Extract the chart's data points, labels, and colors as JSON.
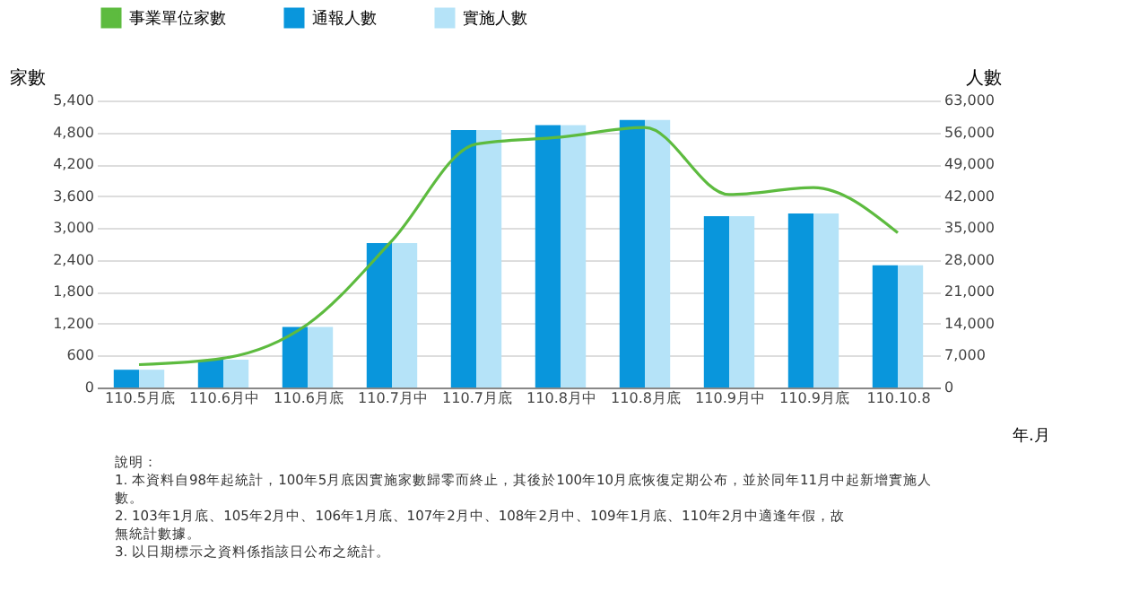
{
  "chart_data": {
    "type": "bar",
    "categories": [
      "110.5月底",
      "110.6月中",
      "110.6月底",
      "110.7月中",
      "110.7月底",
      "110.8月中",
      "110.8月底",
      "110.9月中",
      "110.9月底",
      "110.10.8"
    ],
    "series": [
      {
        "name": "事業單位家數",
        "type": "line",
        "color": "#5dbb3f",
        "values": [
          430,
          550,
          1190,
          2760,
          4580,
          4710,
          4890,
          3630,
          3760,
          2910
        ]
      },
      {
        "name": "通報人數",
        "axis": "y2",
        "color": "#0996dc",
        "values": [
          3900,
          6100,
          13300,
          31700,
          56500,
          57600,
          58700,
          37600,
          38200,
          26800
        ]
      },
      {
        "name": "實施人數",
        "axis": "y2",
        "color": "#b5e3f8",
        "values": [
          3900,
          6100,
          13300,
          31700,
          56500,
          57600,
          58700,
          37600,
          38200,
          26800
        ]
      }
    ],
    "ylabel": "家數",
    "y2label": "人數",
    "xlabel": "年.月",
    "ylim": [
      0,
      5400
    ],
    "yticks": [
      0,
      600,
      {
        "value": 1200,
        "label": "1,200"
      },
      {
        "value": 1800,
        "label": "1,800"
      },
      {
        "value": 2400,
        "label": "2,400"
      },
      {
        "value": 3000,
        "label": "3,000"
      },
      {
        "value": 3600,
        "label": "3,600"
      },
      {
        "value": 4200,
        "label": "4,200"
      },
      {
        "value": 4800,
        "label": "4,800"
      },
      {
        "value": 5400,
        "label": "5,400"
      }
    ],
    "y2lim": [
      0,
      63000
    ],
    "y2ticks": [
      0,
      {
        "value": 7000,
        "label": "7,000"
      },
      {
        "value": 14000,
        "label": "14,000"
      },
      {
        "value": 21000,
        "label": "21,000"
      },
      {
        "value": 28000,
        "label": "28,000"
      },
      {
        "value": 35000,
        "label": "35,000"
      },
      {
        "value": 42000,
        "label": "42,000"
      },
      {
        "value": 49000,
        "label": "49,000"
      },
      {
        "value": 56000,
        "label": "56,000"
      },
      {
        "value": 63000,
        "label": "63,000"
      }
    ],
    "grid": "y",
    "legend": "top",
    "annotations": [
      "說明：",
      "1. 本資料自98年起統計，100年5月底因實施家數歸零而終止，其後於100年10月底恢復定期公布，並於同年11月中起新增實施人數。",
      "2. 103年1月底、105年2月中、106年1月底、107年2月中、108年2月中、109年1月底、110年2月中適逢年假，故無統計數據。",
      "3. 以日期標示之資料係指該日公布之統計。"
    ]
  }
}
